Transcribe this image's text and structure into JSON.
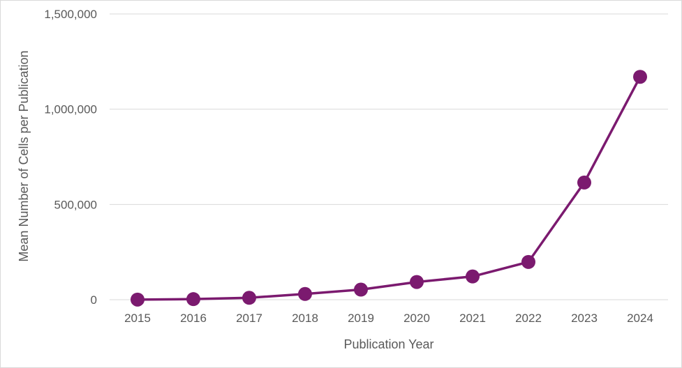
{
  "chart_data": {
    "type": "line",
    "title": "",
    "xlabel": "Publication Year",
    "ylabel": "Mean Number of Cells per Publication",
    "categories": [
      "2015",
      "2016",
      "2017",
      "2018",
      "2019",
      "2020",
      "2021",
      "2022",
      "2023",
      "2024"
    ],
    "series": [
      {
        "values": [
          500,
          3000,
          10000,
          30000,
          53000,
          93000,
          122000,
          198000,
          615000,
          1170000
        ]
      }
    ],
    "ylim": [
      0,
      1500000
    ],
    "yticks": [
      0,
      500000,
      1000000,
      1500000
    ],
    "ytick_labels": [
      "0",
      "500,000",
      "1,000,000",
      "1,500,000"
    ],
    "grid": "horizontal",
    "legend": "none",
    "colors": {
      "series": "#7b1a6f",
      "grid": "#d9d9d9",
      "text": "#595959",
      "border": "#d9d9d9"
    }
  }
}
